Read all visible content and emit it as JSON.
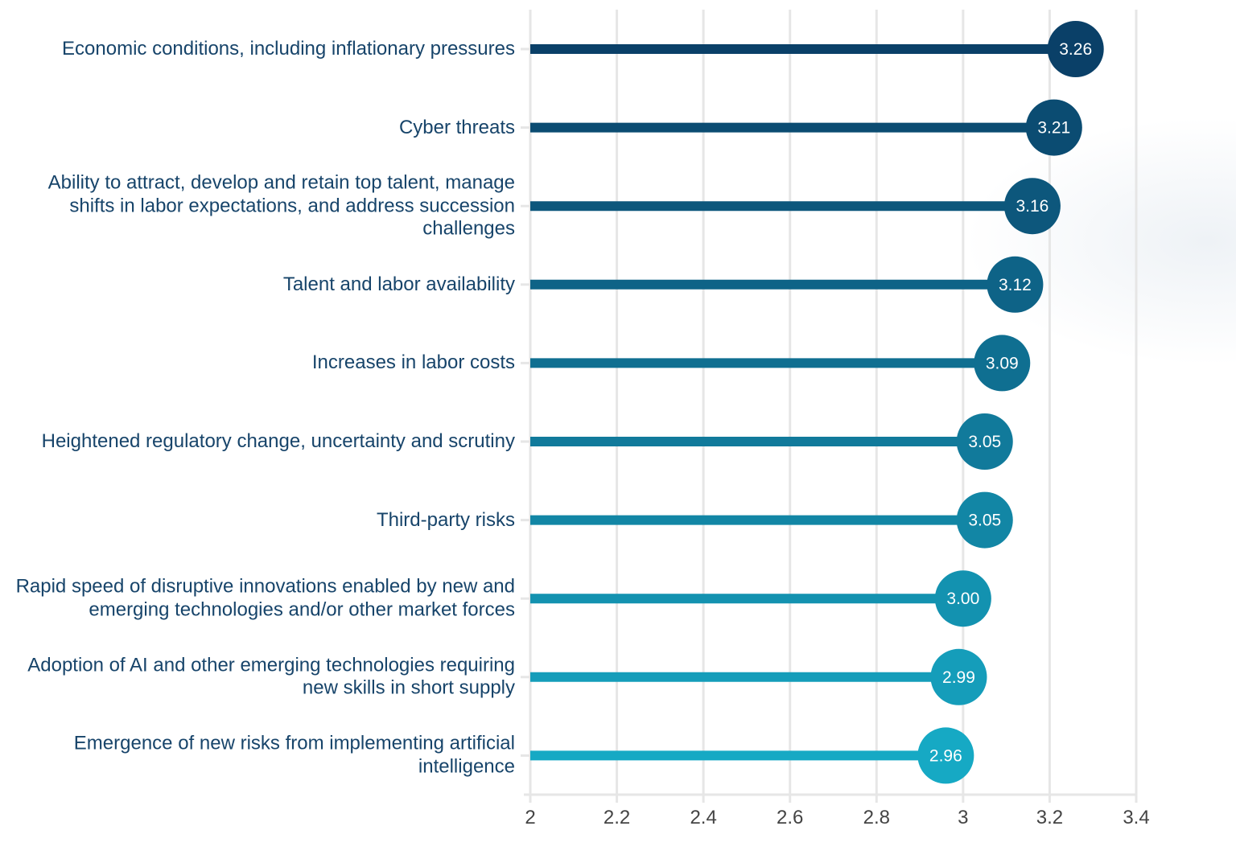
{
  "chart_data": {
    "type": "lollipop",
    "orientation": "horizontal",
    "categories": [
      "Economic conditions, including inflationary pressures",
      "Cyber threats",
      "Ability to attract, develop and retain top talent, manage shifts in labor expectations, and address succession challenges",
      "Talent and labor availability",
      "Increases in labor costs",
      "Heightened regulatory change, uncertainty and scrutiny",
      "Third-party risks",
      "Rapid speed of disruptive innovations enabled by new and emerging technologies and/or other market forces",
      "Adoption of AI and other emerging technologies requiring new skills in short supply",
      "Emergence of new risks from implementing artificial intelligence"
    ],
    "values": [
      3.26,
      3.21,
      3.16,
      3.12,
      3.09,
      3.05,
      3.05,
      3.0,
      2.99,
      2.96
    ],
    "value_labels": [
      "3.26",
      "3.21",
      "3.16",
      "3.12",
      "3.09",
      "3.05",
      "3.05",
      "3.00",
      "2.99",
      "2.96"
    ],
    "xlim": [
      2,
      3.4
    ],
    "x_ticks": [
      "2",
      "2.2",
      "2.4",
      "2.6",
      "2.8",
      "3",
      "3.2",
      "3.4"
    ],
    "grid": true,
    "colors": {
      "start": "#0a4068",
      "end": "#16a9c4"
    }
  }
}
